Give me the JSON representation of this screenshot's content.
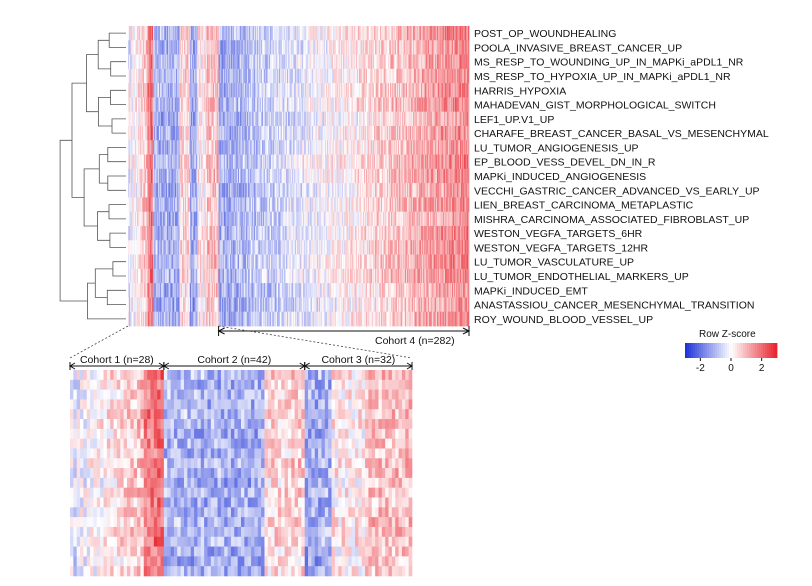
{
  "chart_data": {
    "type": "heatmap",
    "rows": [
      "POST_OP_WOUNDHEALING",
      "POOLA_INVASIVE_BREAST_CANCER_UP",
      "MS_RESP_TO_WOUNDING_UP_IN_MAPKi_aPDL1_NR",
      "MS_RESP_TO_HYPOXIA_UP_IN_MAPKi_aPDL1_NR",
      "HARRIS_HYPOXIA",
      "MAHADEVAN_GIST_MORPHOLOGICAL_SWITCH",
      "LEF1_UP.V1_UP",
      "CHARAFE_BREAST_CANCER_BASAL_VS_MESENCHYMAL",
      "LU_TUMOR_ANGIOGENESIS_UP",
      "EP_BLOOD_VESS_DEVEL_DN_IN_R",
      "MAPKi_INDUCED_ANGIOGENESIS",
      "VECCHI_GASTRIC_CANCER_ADVANCED_VS_EARLY_UP",
      "LIEN_BREAST_CARCINOMA_METAPLASTIC",
      "MISHRA_CARCINOMA_ASSOCIATED_FIBROBLAST_UP",
      "WESTON_VEGFA_TARGETS_6HR",
      "WESTON_VEGFA_TARGETS_12HR",
      "LU_TUMOR_VASCULATURE_UP",
      "LU_TUMOR_ENDOTHELIAL_MARKERS_UP",
      "MAPKi_INDUCED_EMT",
      "ANASTASSIOU_CANCER_MESENCHYMAL_TRANSITION",
      "ROY_WOUND_BLOOD_VESSEL_UP"
    ],
    "cohorts": [
      {
        "label": "Cohort 1 (n=28)",
        "n": 28
      },
      {
        "label": "Cohort 2 (n=42)",
        "n": 42
      },
      {
        "label": "Cohort 3 (n=32)",
        "n": 32
      },
      {
        "label": "Cohort 4 (n=282)",
        "n": 282
      }
    ],
    "legend": {
      "title": "Row Z-score",
      "ticks": [
        "-2",
        "0",
        "2"
      ],
      "range": [
        -3,
        3
      ],
      "colors": {
        "low": "#1a2fd6",
        "mid": "#ffffff",
        "high": "#e8202a"
      }
    },
    "zoom_inset": "Cohorts 1-3 enlarged",
    "dendrogram": "row clustering"
  }
}
